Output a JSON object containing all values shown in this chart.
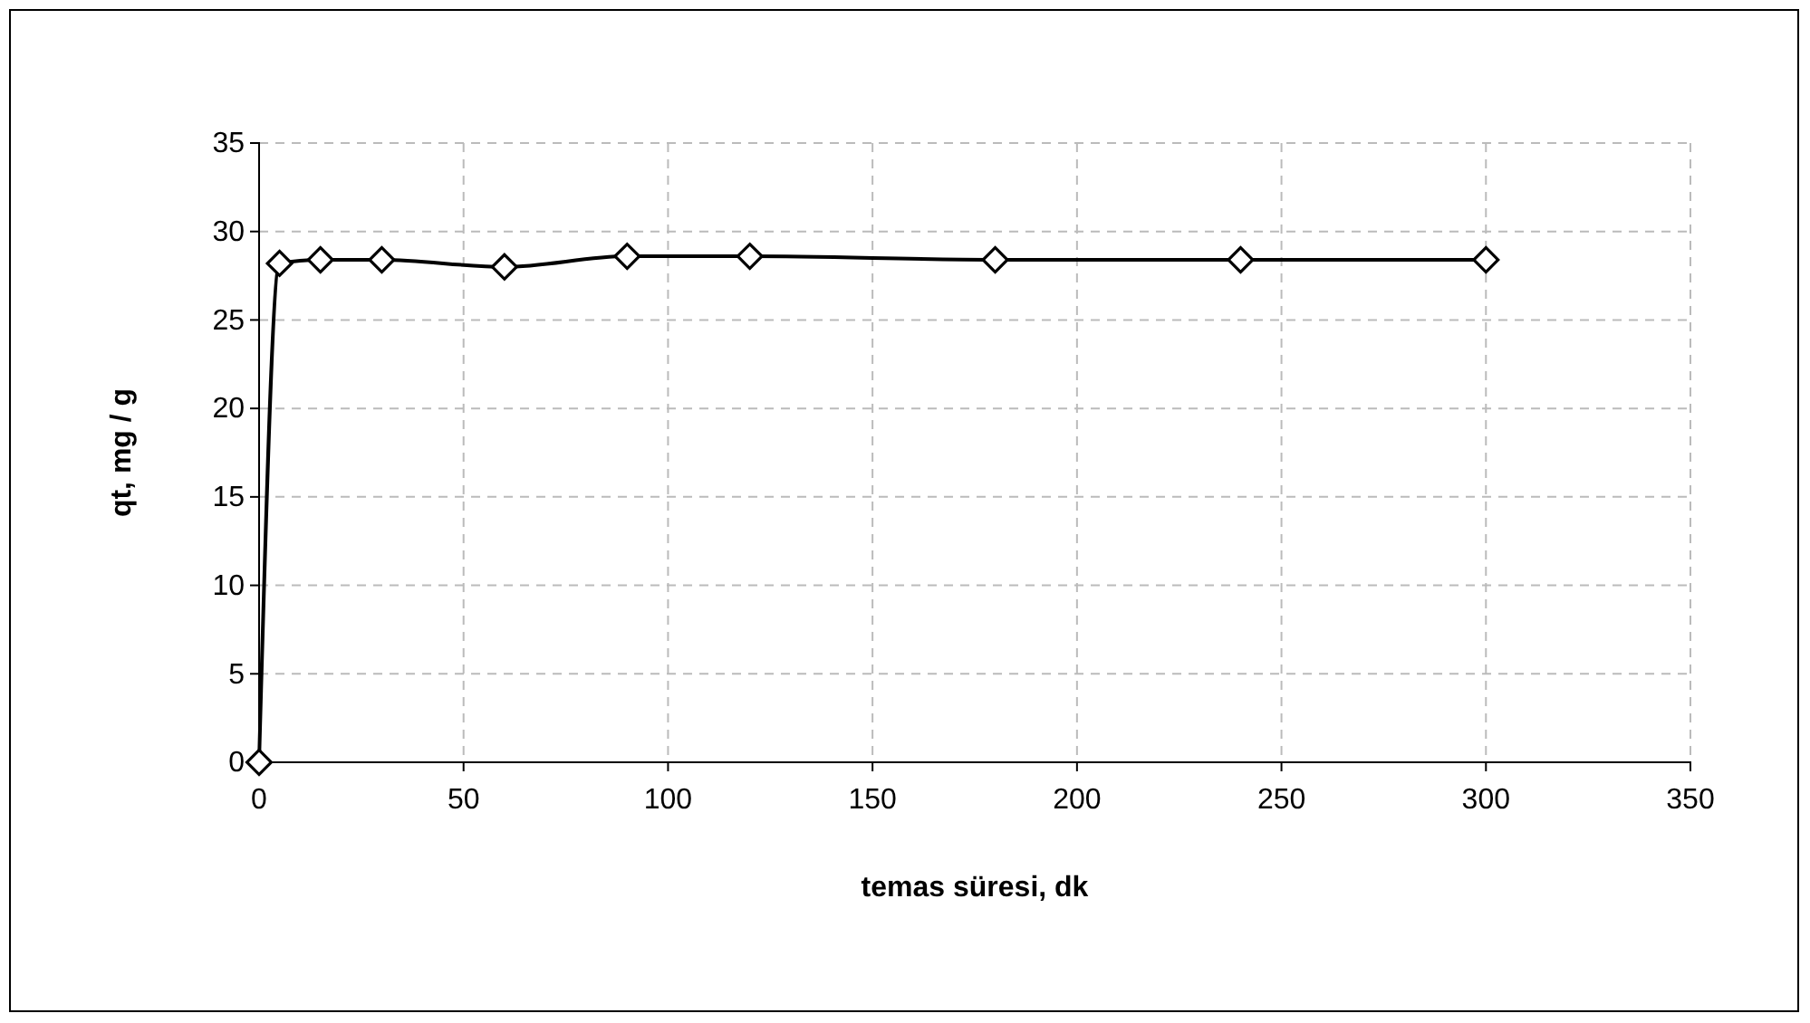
{
  "chart_data": {
    "type": "line",
    "xlabel": "temas süresi, dk",
    "ylabel": "qt, mg / g",
    "x": [
      0,
      5,
      15,
      30,
      60,
      90,
      120,
      180,
      240,
      300
    ],
    "series": [
      {
        "color": "#000000",
        "values": [
          0,
          28.2,
          28.4,
          28.4,
          28.0,
          28.6,
          28.6,
          28.4,
          28.4,
          28.4
        ]
      }
    ],
    "xlim": [
      0,
      350
    ],
    "xticks": [
      0,
      50,
      100,
      150,
      200,
      250,
      300,
      350
    ],
    "ylim": [
      0,
      35
    ],
    "yticks": [
      0,
      5,
      10,
      15,
      20,
      25,
      30,
      35
    ],
    "grid": true,
    "marker": "diamond",
    "line_style": "solid"
  }
}
